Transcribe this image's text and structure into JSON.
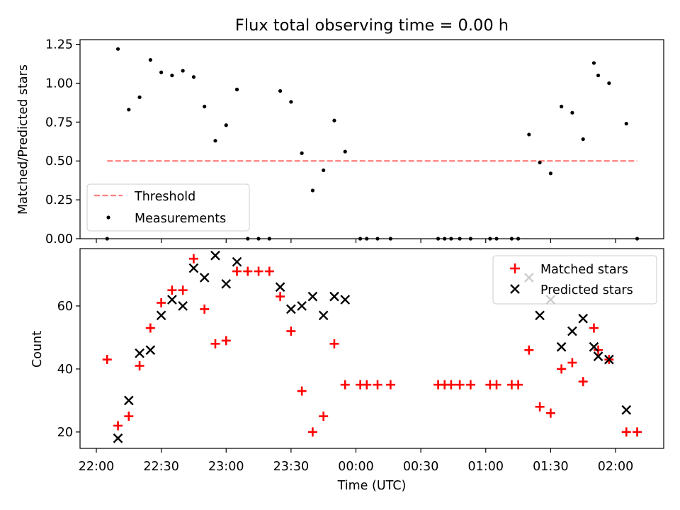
{
  "chart_data": [
    {
      "type": "scatter",
      "title": "Flux total observing time = 0.00 h",
      "xlabel": "",
      "ylabel": "Matched/Predicted stars",
      "ylim": [
        0,
        1.28
      ],
      "yticks": [
        "0.00",
        "0.25",
        "0.50",
        "0.75",
        "1.00",
        "1.25"
      ],
      "legend_position": "lower-left",
      "threshold": {
        "name": "Threshold",
        "value": 0.5,
        "x_start": "22:05",
        "x_end": "02:10",
        "color": "#ff7f7f"
      },
      "series": [
        {
          "name": "Measurements",
          "color": "#000000",
          "marker": "dot",
          "points": [
            [
              "22:05",
              0.0
            ],
            [
              "22:10",
              1.22
            ],
            [
              "22:15",
              0.83
            ],
            [
              "22:20",
              0.91
            ],
            [
              "22:25",
              1.15
            ],
            [
              "22:30",
              1.07
            ],
            [
              "22:35",
              1.05
            ],
            [
              "22:40",
              1.08
            ],
            [
              "22:45",
              1.04
            ],
            [
              "22:50",
              0.85
            ],
            [
              "22:55",
              0.63
            ],
            [
              "23:00",
              0.73
            ],
            [
              "23:05",
              0.96
            ],
            [
              "23:10",
              0.0
            ],
            [
              "23:15",
              0.0
            ],
            [
              "23:20",
              0.0
            ],
            [
              "23:25",
              0.95
            ],
            [
              "23:30",
              0.88
            ],
            [
              "23:35",
              0.55
            ],
            [
              "23:40",
              0.31
            ],
            [
              "23:45",
              0.44
            ],
            [
              "23:50",
              0.76
            ],
            [
              "23:55",
              0.56
            ],
            [
              "00:02",
              0.0
            ],
            [
              "00:05",
              0.0
            ],
            [
              "00:10",
              0.0
            ],
            [
              "00:16",
              0.0
            ],
            [
              "00:38",
              0.0
            ],
            [
              "00:41",
              0.0
            ],
            [
              "00:44",
              0.0
            ],
            [
              "00:48",
              0.0
            ],
            [
              "00:53",
              0.0
            ],
            [
              "01:02",
              0.0
            ],
            [
              "01:05",
              0.0
            ],
            [
              "01:12",
              0.0
            ],
            [
              "01:15",
              0.0
            ],
            [
              "01:20",
              0.67
            ],
            [
              "01:25",
              0.49
            ],
            [
              "01:30",
              0.42
            ],
            [
              "01:35",
              0.85
            ],
            [
              "01:40",
              0.81
            ],
            [
              "01:45",
              0.64
            ],
            [
              "01:50",
              1.13
            ],
            [
              "01:52",
              1.05
            ],
            [
              "01:57",
              1.0
            ],
            [
              "02:05",
              0.74
            ],
            [
              "02:10",
              0.0
            ]
          ]
        }
      ]
    },
    {
      "type": "scatter",
      "title": "",
      "xlabel": "Time (UTC)",
      "ylabel": "Count",
      "ylim": [
        14.8,
        78.2
      ],
      "yticks": [
        20,
        40,
        60
      ],
      "xticks": [
        "22:00",
        "22:30",
        "23:00",
        "23:30",
        "00:00",
        "00:30",
        "01:00",
        "01:30",
        "02:00"
      ],
      "legend_position": "upper-right",
      "series": [
        {
          "name": "Matched stars",
          "color": "#ff0000",
          "marker": "plus",
          "points": [
            [
              "22:05",
              43
            ],
            [
              "22:10",
              22
            ],
            [
              "22:15",
              25
            ],
            [
              "22:20",
              41
            ],
            [
              "22:25",
              53
            ],
            [
              "22:30",
              61
            ],
            [
              "22:35",
              65
            ],
            [
              "22:40",
              65
            ],
            [
              "22:45",
              75
            ],
            [
              "22:50",
              59
            ],
            [
              "22:55",
              48
            ],
            [
              "23:00",
              49
            ],
            [
              "23:05",
              71
            ],
            [
              "23:10",
              71
            ],
            [
              "23:15",
              71
            ],
            [
              "23:20",
              71
            ],
            [
              "23:25",
              63
            ],
            [
              "23:30",
              52
            ],
            [
              "23:35",
              33
            ],
            [
              "23:40",
              20
            ],
            [
              "23:45",
              25
            ],
            [
              "23:50",
              48
            ],
            [
              "23:55",
              35
            ],
            [
              "00:02",
              35
            ],
            [
              "00:05",
              35
            ],
            [
              "00:10",
              35
            ],
            [
              "00:16",
              35
            ],
            [
              "00:38",
              35
            ],
            [
              "00:41",
              35
            ],
            [
              "00:44",
              35
            ],
            [
              "00:48",
              35
            ],
            [
              "00:53",
              35
            ],
            [
              "01:02",
              35
            ],
            [
              "01:05",
              35
            ],
            [
              "01:12",
              35
            ],
            [
              "01:15",
              35
            ],
            [
              "01:20",
              46
            ],
            [
              "01:25",
              28
            ],
            [
              "01:30",
              26
            ],
            [
              "01:35",
              40
            ],
            [
              "01:40",
              42
            ],
            [
              "01:45",
              36
            ],
            [
              "01:50",
              53
            ],
            [
              "01:52",
              46
            ],
            [
              "01:57",
              43
            ],
            [
              "02:05",
              20
            ],
            [
              "02:10",
              20
            ]
          ]
        },
        {
          "name": "Predicted stars",
          "color": "#000000",
          "marker": "x",
          "points": [
            [
              "22:10",
              18
            ],
            [
              "22:15",
              30
            ],
            [
              "22:20",
              45
            ],
            [
              "22:25",
              46
            ],
            [
              "22:30",
              57
            ],
            [
              "22:35",
              62
            ],
            [
              "22:40",
              60
            ],
            [
              "22:45",
              72
            ],
            [
              "22:50",
              69
            ],
            [
              "22:55",
              76
            ],
            [
              "23:00",
              67
            ],
            [
              "23:05",
              74
            ],
            [
              "23:25",
              66
            ],
            [
              "23:30",
              59
            ],
            [
              "23:35",
              60
            ],
            [
              "23:40",
              63
            ],
            [
              "23:45",
              57
            ],
            [
              "23:50",
              63
            ],
            [
              "23:55",
              62
            ],
            [
              "01:20",
              69
            ],
            [
              "01:25",
              57
            ],
            [
              "01:30",
              62
            ],
            [
              "01:35",
              47
            ],
            [
              "01:40",
              52
            ],
            [
              "01:45",
              56
            ],
            [
              "01:50",
              47
            ],
            [
              "01:52",
              44
            ],
            [
              "01:57",
              43
            ],
            [
              "02:05",
              27
            ]
          ]
        }
      ]
    }
  ]
}
